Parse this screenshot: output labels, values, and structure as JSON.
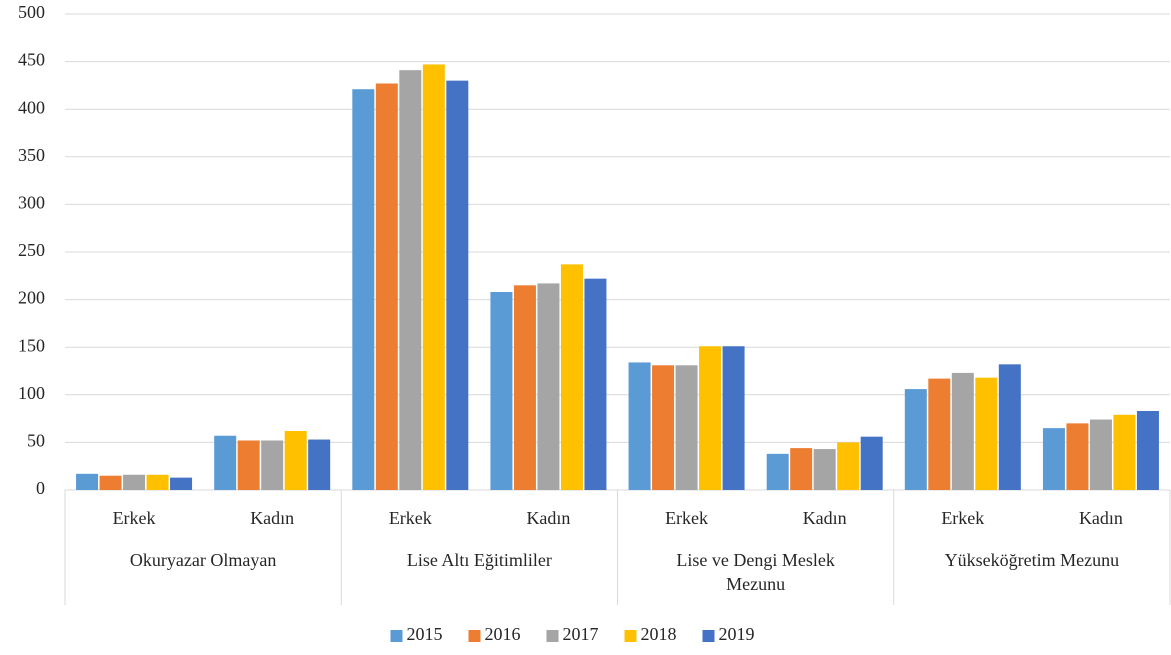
{
  "chart_data": {
    "type": "bar",
    "groups": [
      "Okuryazar Olmayan",
      "Lise Altı Eğitimliler",
      "Lise ve Dengi Meslek Mezunu",
      "Yükseköğretim Mezunu"
    ],
    "categories": [
      "Erkek",
      "Kadın",
      "Erkek",
      "Kadın",
      "Erkek",
      "Kadın",
      "Erkek",
      "Kadın"
    ],
    "series": [
      {
        "name": "2015",
        "color": "#5b9bd5",
        "values": [
          17,
          57,
          421,
          208,
          134,
          38,
          106,
          65
        ]
      },
      {
        "name": "2016",
        "color": "#ed7d31",
        "values": [
          15,
          52,
          427,
          215,
          131,
          44,
          117,
          70
        ]
      },
      {
        "name": "2017",
        "color": "#a5a5a5",
        "values": [
          16,
          52,
          441,
          217,
          131,
          43,
          123,
          74
        ]
      },
      {
        "name": "2018",
        "color": "#ffc000",
        "values": [
          16,
          62,
          447,
          237,
          151,
          50,
          118,
          79
        ]
      },
      {
        "name": "2019",
        "color": "#4472c4",
        "values": [
          13,
          53,
          430,
          222,
          151,
          56,
          132,
          83
        ]
      }
    ],
    "ylim": [
      0,
      500
    ],
    "yticks": [
      0,
      50,
      100,
      150,
      200,
      250,
      300,
      350,
      400,
      450,
      500
    ],
    "grid": true,
    "legend": "bottom"
  }
}
